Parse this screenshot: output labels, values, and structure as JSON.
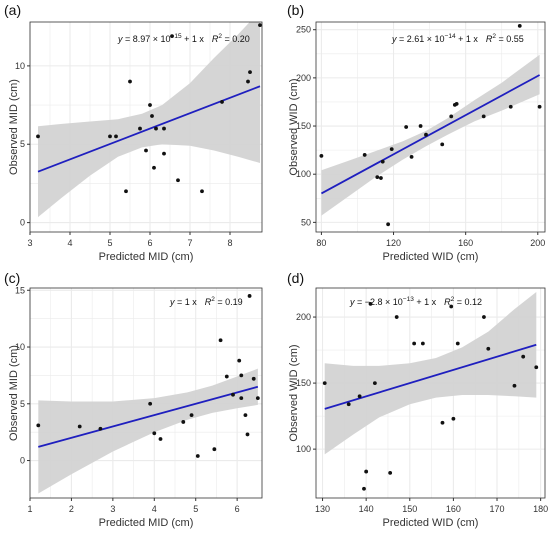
{
  "chart_data": [
    {
      "panel_label": "(a)",
      "type": "scatter",
      "xlabel": "Predicted MID (cm)",
      "ylabel": "Observed MID (cm)",
      "xlim": [
        3,
        8.8
      ],
      "ylim": [
        -0.6,
        12.8
      ],
      "xticks": [
        3,
        4,
        5,
        6,
        7,
        8
      ],
      "yticks": [
        0,
        5,
        10
      ],
      "equation": {
        "base": "y = 8.97 × 10",
        "exp": "−15",
        "tail": " + 1 x",
        "r2": " = 0.20"
      },
      "points": [
        {
          "x": 3.2,
          "y": 5.5
        },
        {
          "x": 5.0,
          "y": 5.5
        },
        {
          "x": 5.15,
          "y": 5.5
        },
        {
          "x": 5.4,
          "y": 2.0
        },
        {
          "x": 5.5,
          "y": 9.0
        },
        {
          "x": 5.75,
          "y": 6.0
        },
        {
          "x": 5.9,
          "y": 4.6
        },
        {
          "x": 6.0,
          "y": 7.5
        },
        {
          "x": 6.05,
          "y": 6.8
        },
        {
          "x": 6.1,
          "y": 3.5
        },
        {
          "x": 6.15,
          "y": 6.0
        },
        {
          "x": 6.35,
          "y": 6.0
        },
        {
          "x": 6.35,
          "y": 4.4
        },
        {
          "x": 6.55,
          "y": 11.9
        },
        {
          "x": 6.7,
          "y": 2.7
        },
        {
          "x": 7.3,
          "y": 2.0
        },
        {
          "x": 7.8,
          "y": 7.7
        },
        {
          "x": 8.45,
          "y": 9.0
        },
        {
          "x": 8.5,
          "y": 9.6
        },
        {
          "x": 8.75,
          "y": 12.6
        }
      ],
      "fit": {
        "x": [
          3.2,
          8.75
        ],
        "y": [
          3.25,
          8.7
        ]
      },
      "band": {
        "x": [
          3.2,
          3.8,
          4.5,
          5.2,
          5.8,
          6.3,
          7.0,
          7.6,
          8.2,
          8.75
        ],
        "lo": [
          0.35,
          1.6,
          3.0,
          4.2,
          4.8,
          5.0,
          4.9,
          4.6,
          4.2,
          3.8
        ],
        "hi": [
          6.15,
          6.3,
          6.45,
          6.6,
          6.95,
          7.5,
          8.9,
          10.5,
          12.0,
          13.5
        ]
      }
    },
    {
      "panel_label": "(b)",
      "type": "scatter",
      "xlabel": "Predicted WID (cm)",
      "ylabel": "Observed WID (cm)",
      "xlim": [
        77,
        204
      ],
      "ylim": [
        40,
        258
      ],
      "xticks": [
        80,
        120,
        160,
        200
      ],
      "yticks": [
        50,
        100,
        150,
        200,
        250
      ],
      "equation": {
        "base": "y = 2.61 × 10",
        "exp": "−14",
        "tail": " + 1 x",
        "r2": " = 0.55"
      },
      "points": [
        {
          "x": 80,
          "y": 119
        },
        {
          "x": 104,
          "y": 120
        },
        {
          "x": 111,
          "y": 97
        },
        {
          "x": 113,
          "y": 96
        },
        {
          "x": 114,
          "y": 113
        },
        {
          "x": 117,
          "y": 48
        },
        {
          "x": 119,
          "y": 126
        },
        {
          "x": 127,
          "y": 149
        },
        {
          "x": 130,
          "y": 118
        },
        {
          "x": 135,
          "y": 150
        },
        {
          "x": 138,
          "y": 141
        },
        {
          "x": 147,
          "y": 131
        },
        {
          "x": 152,
          "y": 160
        },
        {
          "x": 154,
          "y": 172
        },
        {
          "x": 155,
          "y": 173
        },
        {
          "x": 170,
          "y": 160
        },
        {
          "x": 185,
          "y": 170
        },
        {
          "x": 190,
          "y": 254
        },
        {
          "x": 201,
          "y": 170
        }
      ],
      "fit": {
        "x": [
          80,
          201
        ],
        "y": [
          80,
          203
        ]
      },
      "band": {
        "x": [
          80,
          95,
          110,
          125,
          138,
          150,
          165,
          180,
          201
        ],
        "lo": [
          57,
          77,
          97,
          115,
          129,
          141,
          155,
          166,
          183
        ],
        "hi": [
          104,
          114,
          124,
          134,
          145,
          158,
          177,
          195,
          224
        ]
      }
    },
    {
      "panel_label": "(c)",
      "type": "scatter",
      "xlabel": "Predicted MID (cm)",
      "ylabel": "Observed MID (cm)",
      "xlim": [
        1,
        6.6
      ],
      "ylim": [
        -3.3,
        15.2
      ],
      "xticks": [
        1,
        2,
        3,
        4,
        5,
        6
      ],
      "yticks": [
        0,
        5,
        10,
        15
      ],
      "equation": {
        "base": "y = 1 x",
        "exp": "",
        "tail": "",
        "r2": " = 0.19"
      },
      "points": [
        {
          "x": 1.2,
          "y": 3.1
        },
        {
          "x": 2.2,
          "y": 3.0
        },
        {
          "x": 2.7,
          "y": 2.8
        },
        {
          "x": 3.9,
          "y": 5.0
        },
        {
          "x": 4.0,
          "y": 2.4
        },
        {
          "x": 4.15,
          "y": 1.9
        },
        {
          "x": 4.7,
          "y": 3.4
        },
        {
          "x": 4.9,
          "y": 4.0
        },
        {
          "x": 5.05,
          "y": 0.4
        },
        {
          "x": 5.45,
          "y": 1.0
        },
        {
          "x": 5.6,
          "y": 10.6
        },
        {
          "x": 5.75,
          "y": 7.4
        },
        {
          "x": 5.9,
          "y": 5.8
        },
        {
          "x": 6.05,
          "y": 8.8
        },
        {
          "x": 6.1,
          "y": 7.5
        },
        {
          "x": 6.1,
          "y": 5.5
        },
        {
          "x": 6.2,
          "y": 4.0
        },
        {
          "x": 6.25,
          "y": 2.3
        },
        {
          "x": 6.3,
          "y": 14.5
        },
        {
          "x": 6.4,
          "y": 7.2
        },
        {
          "x": 6.5,
          "y": 5.5
        }
      ],
      "fit": {
        "x": [
          1.2,
          6.5
        ],
        "y": [
          1.2,
          6.5
        ]
      },
      "band": {
        "x": [
          1.2,
          2.0,
          3.0,
          4.0,
          4.8,
          5.4,
          6.0,
          6.5
        ],
        "lo": [
          -2.9,
          -1.2,
          0.8,
          2.5,
          3.6,
          4.2,
          4.6,
          4.9
        ],
        "hi": [
          5.3,
          5.2,
          5.2,
          5.5,
          6.0,
          6.6,
          7.4,
          8.1
        ]
      }
    },
    {
      "panel_label": "(d)",
      "type": "scatter",
      "xlabel": "Predicted WID (cm)",
      "ylabel": "Observed WID (cm)",
      "xlim": [
        128.5,
        181
      ],
      "ylim": [
        63,
        222
      ],
      "xticks": [
        130,
        140,
        150,
        160,
        170,
        180
      ],
      "yticks": [
        100,
        150,
        200
      ],
      "equation": {
        "base": "y = −2.8 × 10",
        "exp": "−13",
        "tail": " + 1 x",
        "r2": " = 0.12"
      },
      "points": [
        {
          "x": 130.5,
          "y": 150
        },
        {
          "x": 136,
          "y": 134
        },
        {
          "x": 138.5,
          "y": 140
        },
        {
          "x": 139.5,
          "y": 70
        },
        {
          "x": 140,
          "y": 83
        },
        {
          "x": 141,
          "y": 210
        },
        {
          "x": 142,
          "y": 150
        },
        {
          "x": 145.5,
          "y": 82
        },
        {
          "x": 147,
          "y": 200
        },
        {
          "x": 151,
          "y": 180
        },
        {
          "x": 153,
          "y": 180
        },
        {
          "x": 157.5,
          "y": 120
        },
        {
          "x": 159.5,
          "y": 208
        },
        {
          "x": 160,
          "y": 123
        },
        {
          "x": 161,
          "y": 180
        },
        {
          "x": 167,
          "y": 200
        },
        {
          "x": 168,
          "y": 176
        },
        {
          "x": 174,
          "y": 148
        },
        {
          "x": 176,
          "y": 170
        },
        {
          "x": 179,
          "y": 162
        }
      ],
      "fit": {
        "x": [
          130.5,
          179
        ],
        "y": [
          130.5,
          179
        ]
      },
      "band": {
        "x": [
          130.5,
          137,
          143,
          150,
          156,
          162,
          168,
          174,
          179
        ],
        "lo": [
          96,
          111,
          124,
          134,
          139,
          141,
          141,
          140,
          139
        ],
        "hi": [
          165,
          163,
          163,
          165,
          169,
          177,
          189,
          206,
          219
        ]
      }
    }
  ],
  "colors": {
    "band": "#d3d3d3",
    "fit_line": "#1f1fbf",
    "points": "#111111",
    "grid": "#ebebeb",
    "frame": "#333333",
    "text": "#333333"
  }
}
